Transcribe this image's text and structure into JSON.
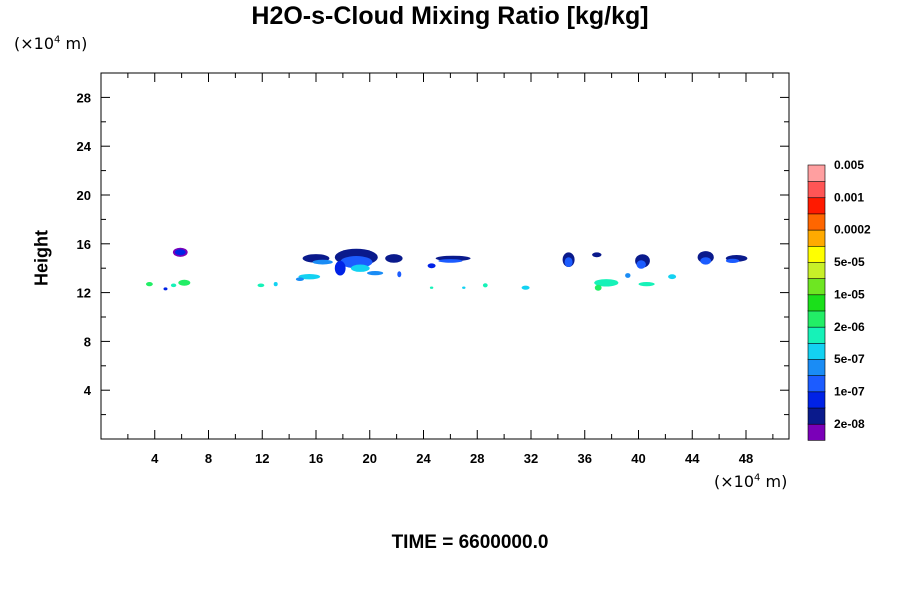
{
  "chart_data": {
    "type": "contour",
    "title": "H2O-s-Cloud Mixing Ratio [kg/kg]",
    "ylabel": "Height",
    "x_unit": "(×10^4 m)",
    "y_unit": "(×10^4 m)",
    "xlim": [
      0,
      51.2
    ],
    "ylim": [
      0,
      30
    ],
    "x_ticks": [
      4,
      8,
      12,
      16,
      20,
      24,
      28,
      32,
      36,
      40,
      44,
      48
    ],
    "y_ticks": [
      4,
      8,
      12,
      16,
      20,
      24,
      28
    ],
    "footer": "TIME = 6600000.0",
    "colorbar": {
      "colors": [
        "#7a00b8",
        "#0a1a8c",
        "#0022e6",
        "#1c5cff",
        "#1a8cf5",
        "#13d2f2",
        "#16f2b8",
        "#22ee66",
        "#1ae01a",
        "#6ee622",
        "#c8f028",
        "#ffff00",
        "#ffaa00",
        "#ff6600",
        "#ff1a00",
        "#ff5555",
        "#ff9fa0"
      ],
      "labels": [
        "2e-08",
        "1e-07",
        "5e-07",
        "2e-06",
        "1e-05",
        "5e-05",
        "0.0002",
        "0.001",
        "0.005"
      ]
    },
    "cloud_features": [
      {
        "x": 3.6,
        "y": 12.7,
        "w": 0.5,
        "h": 0.35,
        "level": 7
      },
      {
        "x": 5.4,
        "y": 12.6,
        "w": 0.4,
        "h": 0.3,
        "level": 6
      },
      {
        "x": 6.2,
        "y": 12.8,
        "w": 0.9,
        "h": 0.5,
        "level": 7
      },
      {
        "x": 4.8,
        "y": 12.3,
        "w": 0.3,
        "h": 0.25,
        "level": 2
      },
      {
        "x": 5.9,
        "y": 15.3,
        "w": 1.1,
        "h": 0.75,
        "level": 0
      },
      {
        "x": 5.9,
        "y": 15.3,
        "w": 0.8,
        "h": 0.5,
        "level": 2
      },
      {
        "x": 11.9,
        "y": 12.6,
        "w": 0.5,
        "h": 0.3,
        "level": 6
      },
      {
        "x": 13.0,
        "y": 12.7,
        "w": 0.3,
        "h": 0.35,
        "level": 5
      },
      {
        "x": 16.0,
        "y": 14.8,
        "w": 2.0,
        "h": 0.7,
        "level": 1
      },
      {
        "x": 16.5,
        "y": 14.5,
        "w": 1.5,
        "h": 0.4,
        "level": 4
      },
      {
        "x": 19.0,
        "y": 14.9,
        "w": 3.2,
        "h": 1.4,
        "level": 1
      },
      {
        "x": 19.0,
        "y": 14.5,
        "w": 2.4,
        "h": 1.0,
        "level": 3
      },
      {
        "x": 19.3,
        "y": 14.0,
        "w": 1.4,
        "h": 0.6,
        "level": 5
      },
      {
        "x": 17.8,
        "y": 14.0,
        "w": 0.8,
        "h": 1.2,
        "level": 2
      },
      {
        "x": 21.8,
        "y": 14.8,
        "w": 1.3,
        "h": 0.7,
        "level": 1
      },
      {
        "x": 15.5,
        "y": 13.3,
        "w": 1.6,
        "h": 0.45,
        "level": 5
      },
      {
        "x": 14.8,
        "y": 13.1,
        "w": 0.6,
        "h": 0.3,
        "level": 4
      },
      {
        "x": 20.4,
        "y": 13.6,
        "w": 1.2,
        "h": 0.35,
        "level": 4
      },
      {
        "x": 22.2,
        "y": 13.5,
        "w": 0.3,
        "h": 0.5,
        "level": 3
      },
      {
        "x": 26.2,
        "y": 14.8,
        "w": 2.6,
        "h": 0.45,
        "level": 1
      },
      {
        "x": 26.0,
        "y": 14.6,
        "w": 1.8,
        "h": 0.3,
        "level": 3
      },
      {
        "x": 24.6,
        "y": 14.2,
        "w": 0.6,
        "h": 0.4,
        "level": 2
      },
      {
        "x": 24.6,
        "y": 12.4,
        "w": 0.25,
        "h": 0.2,
        "level": 6
      },
      {
        "x": 27.0,
        "y": 12.4,
        "w": 0.25,
        "h": 0.2,
        "level": 5
      },
      {
        "x": 28.6,
        "y": 12.6,
        "w": 0.35,
        "h": 0.35,
        "level": 6
      },
      {
        "x": 31.6,
        "y": 12.4,
        "w": 0.6,
        "h": 0.35,
        "level": 5
      },
      {
        "x": 34.8,
        "y": 14.7,
        "w": 0.9,
        "h": 1.2,
        "level": 1
      },
      {
        "x": 34.8,
        "y": 14.5,
        "w": 0.6,
        "h": 0.8,
        "level": 3
      },
      {
        "x": 36.9,
        "y": 15.1,
        "w": 0.7,
        "h": 0.4,
        "level": 1
      },
      {
        "x": 37.6,
        "y": 12.8,
        "w": 1.8,
        "h": 0.6,
        "level": 6
      },
      {
        "x": 37.0,
        "y": 12.4,
        "w": 0.5,
        "h": 0.5,
        "level": 7
      },
      {
        "x": 40.3,
        "y": 14.6,
        "w": 1.1,
        "h": 1.1,
        "level": 1
      },
      {
        "x": 40.2,
        "y": 14.3,
        "w": 0.7,
        "h": 0.7,
        "level": 3
      },
      {
        "x": 40.6,
        "y": 12.7,
        "w": 1.2,
        "h": 0.35,
        "level": 6
      },
      {
        "x": 42.5,
        "y": 13.3,
        "w": 0.6,
        "h": 0.4,
        "level": 5
      },
      {
        "x": 39.2,
        "y": 13.4,
        "w": 0.4,
        "h": 0.4,
        "level": 4
      },
      {
        "x": 45.0,
        "y": 14.9,
        "w": 1.2,
        "h": 1.0,
        "level": 1
      },
      {
        "x": 45.0,
        "y": 14.6,
        "w": 0.8,
        "h": 0.6,
        "level": 3
      },
      {
        "x": 47.3,
        "y": 14.8,
        "w": 1.6,
        "h": 0.55,
        "level": 1
      },
      {
        "x": 47.0,
        "y": 14.6,
        "w": 1.0,
        "h": 0.35,
        "level": 3
      }
    ]
  }
}
